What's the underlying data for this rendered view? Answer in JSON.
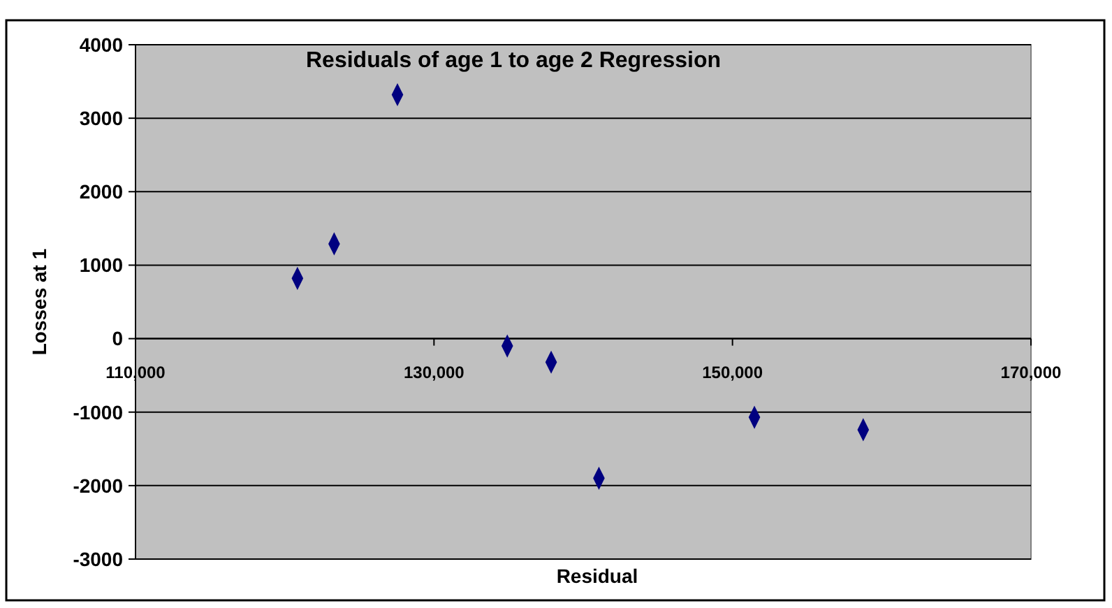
{
  "chart_data": {
    "type": "scatter",
    "title": "Residuals of age 1 to age 2 Regression",
    "xlabel": "Residual",
    "ylabel": "Losses at 1",
    "x": [
      120850,
      123310,
      127550,
      134910,
      137850,
      141050,
      151470,
      158760
    ],
    "values": [
      820,
      1290,
      3320,
      -100,
      -320,
      -1900,
      -1070,
      -1240
    ],
    "color": "#000080",
    "marker": "diamond",
    "xlim": [
      110000,
      170000
    ],
    "xticks": [
      {
        "value": 110000,
        "label": "110,000"
      },
      {
        "value": 130000,
        "label": "130,000"
      },
      {
        "value": 150000,
        "label": "150,000"
      },
      {
        "value": 170000,
        "label": "170,000"
      }
    ],
    "ylim": [
      -3000,
      4000
    ],
    "yticks": [
      -3000,
      -2000,
      -1000,
      0,
      1000,
      2000,
      3000,
      4000
    ],
    "grid": "y"
  }
}
